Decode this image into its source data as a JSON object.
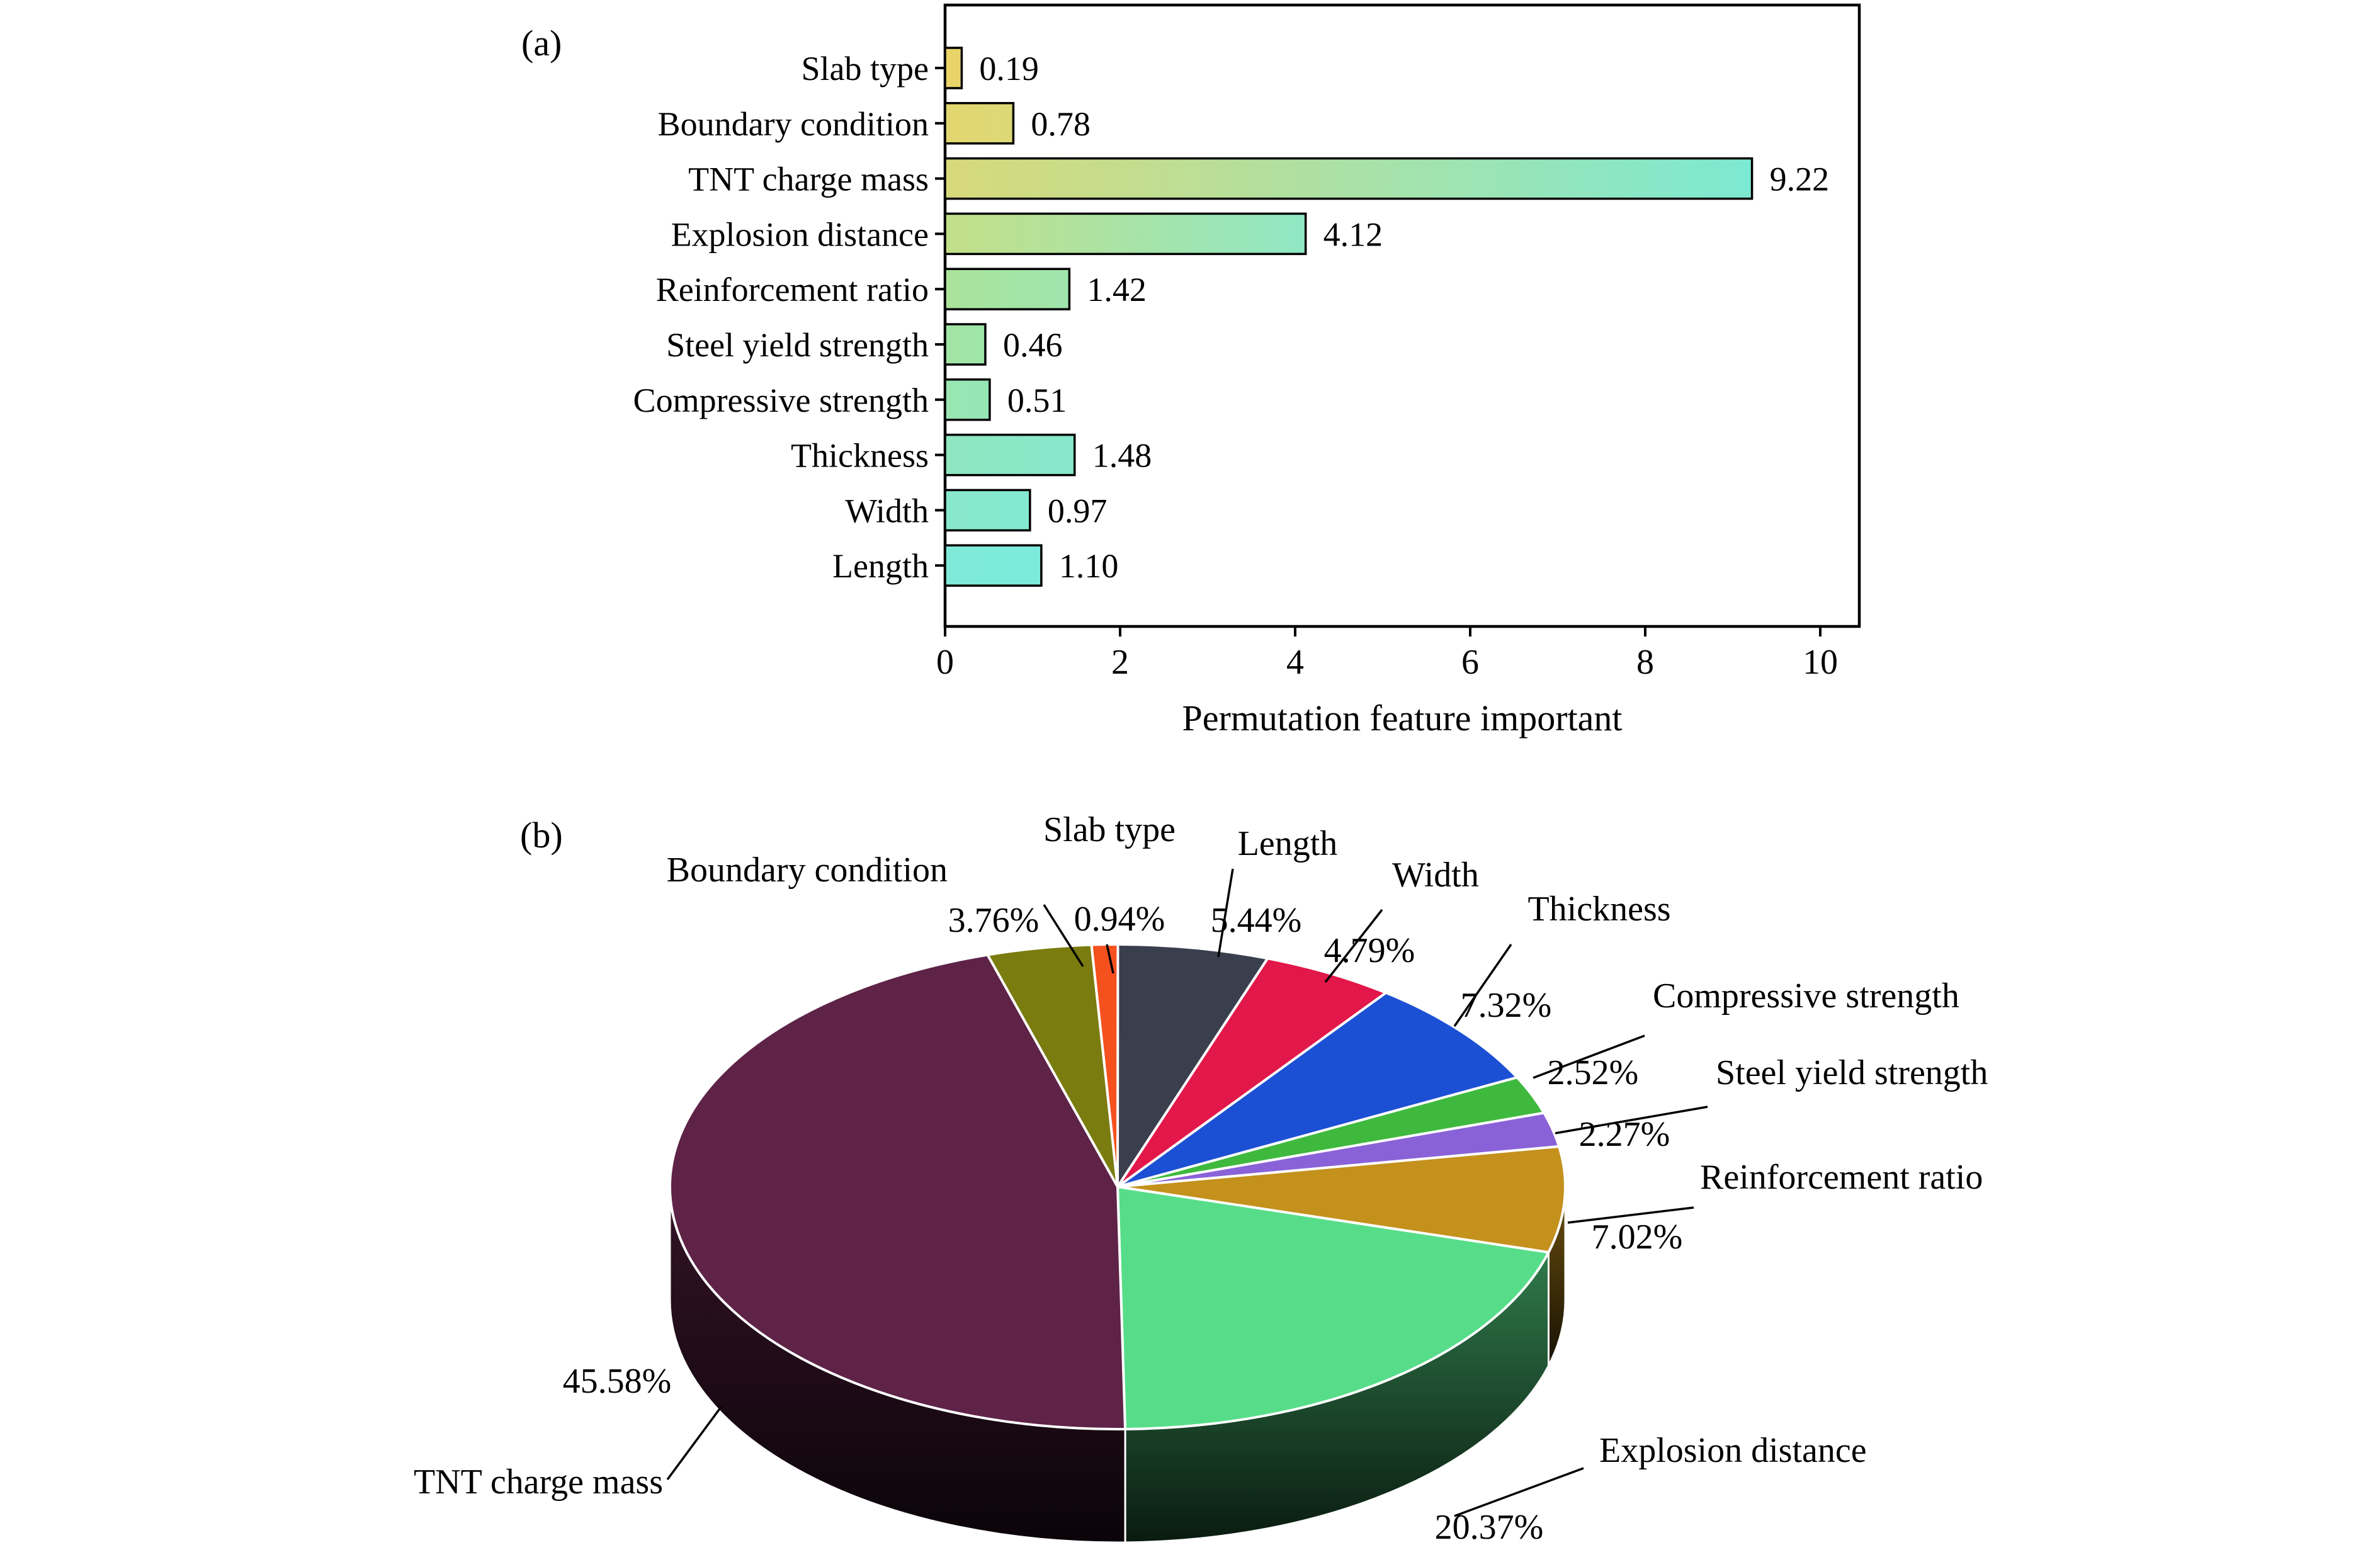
{
  "panels": {
    "a": "(a)",
    "b": "(b)"
  },
  "chart_data": [
    {
      "type": "bar",
      "orientation": "horizontal",
      "title": "",
      "xlabel": "Permutation feature important",
      "ylabel": "",
      "categories": [
        "Slab type",
        "Boundary condition",
        "TNT charge mass",
        "Explosion distance",
        "Reinforcement ratio",
        "Steel yield strength",
        "Compressive strength",
        "Thickness",
        "Width",
        "Length"
      ],
      "values": [
        0.19,
        0.78,
        9.22,
        4.12,
        1.42,
        0.46,
        0.51,
        1.48,
        0.97,
        1.1
      ],
      "value_labels": [
        "0.19",
        "0.78",
        "9.22",
        "4.12",
        "1.42",
        "0.46",
        "0.51",
        "1.48",
        "0.97",
        "1.10"
      ],
      "xlim": [
        0,
        10
      ],
      "xticks": [
        "0",
        "2",
        "4",
        "6",
        "8",
        "10"
      ],
      "grid": false,
      "bar_border_color": "#000000",
      "bar_gradients": [
        {
          "start": "#e9d469",
          "end": "#e8d46b"
        },
        {
          "start": "#e3d66f",
          "end": "#dcd877"
        },
        {
          "start": "#d8d97a",
          "end": "#7de9d2"
        },
        {
          "start": "#c3df88",
          "end": "#8fe7c4"
        },
        {
          "start": "#aae39b",
          "end": "#9fe5ad"
        },
        {
          "start": "#a2e4a3",
          "end": "#9ee5a9"
        },
        {
          "start": "#99e6b1",
          "end": "#95e6b7"
        },
        {
          "start": "#8fe7c0",
          "end": "#87e8cc"
        },
        {
          "start": "#88e8cb",
          "end": "#83e9d2"
        },
        {
          "start": "#80ead7",
          "end": "#7ceadd"
        }
      ]
    },
    {
      "type": "pie",
      "style": "3d",
      "start_angle_deg": -90,
      "direction": "clockwise",
      "legend_position": "around",
      "labels": [
        "Length",
        "Width",
        "Thickness",
        "Compressive strength",
        "Steel yield strength",
        "Reinforcement ratio",
        "Explosion distance",
        "TNT charge mass",
        "Boundary condition",
        "Slab type"
      ],
      "values": [
        5.44,
        4.79,
        7.32,
        2.52,
        2.27,
        7.02,
        20.37,
        45.58,
        3.76,
        0.94
      ],
      "percent_labels": [
        "5.44%",
        "4.79%",
        "7.32%",
        "2.52%",
        "2.27%",
        "7.02%",
        "20.37%",
        "45.58%",
        "3.76%",
        "0.94%"
      ],
      "colors": [
        "#3a3f4e",
        "#e2174a",
        "#1c50d4",
        "#3eb93e",
        "#8a62d8",
        "#c4911c",
        "#57dd89",
        "#5e2347",
        "#7a7c10",
        "#f4511f"
      ],
      "slice_border_color": "#ffffff"
    }
  ]
}
